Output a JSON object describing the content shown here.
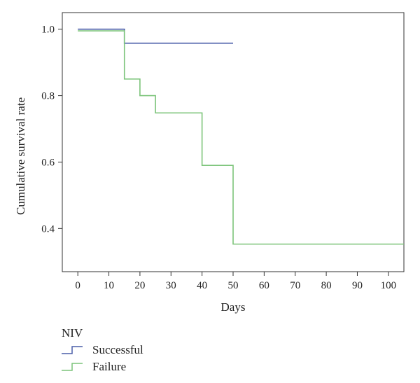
{
  "chart_data": {
    "type": "line",
    "step": true,
    "title": "",
    "xlabel": "Days",
    "ylabel": "Cumulative survival rate",
    "xlim": [
      -5,
      105
    ],
    "ylim": [
      0.27,
      1.05
    ],
    "xticks": [
      0,
      10,
      20,
      30,
      40,
      50,
      60,
      70,
      80,
      90,
      100
    ],
    "yticks": [
      0.4,
      0.6,
      0.8,
      1.0
    ],
    "ytick_labels": [
      "0.4",
      "0.6",
      "0.8",
      "1.0"
    ],
    "grid": false,
    "legend": {
      "title": "NIV",
      "placement": "bottom-left"
    },
    "series": [
      {
        "name": "Successful",
        "color": "#4a5ea8",
        "x": [
          0,
          15,
          50
        ],
        "y": [
          1.0,
          0.958,
          0.958
        ]
      },
      {
        "name": "Failure",
        "color": "#7cc47a",
        "x": [
          0,
          15,
          20,
          25,
          40,
          50,
          105
        ],
        "y": [
          0.995,
          0.85,
          0.8,
          0.748,
          0.59,
          0.353,
          0.353
        ]
      }
    ]
  }
}
